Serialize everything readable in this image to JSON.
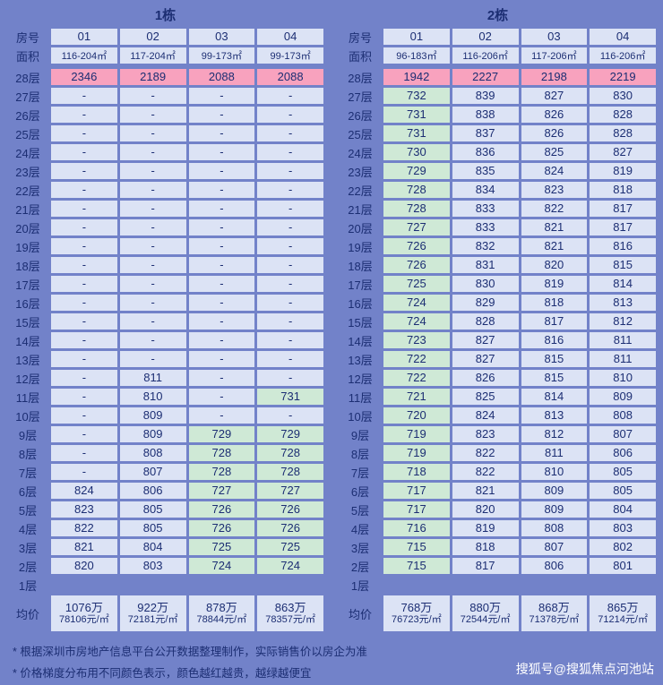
{
  "palette": {
    "background": "#7282c9",
    "cell": "#dce3f5",
    "green": "#cfe9d6",
    "pink": "#f8a2be",
    "text": "#1c2e73",
    "watermark": "#ffffff"
  },
  "chart_data": [
    {
      "type": "table",
      "title": "1栋",
      "row_header": "房号",
      "area_header": "面积",
      "avg_header": "均价",
      "columns": [
        "01",
        "02",
        "03",
        "04"
      ],
      "areas": [
        "116-204㎡",
        "117-204㎡",
        "99-173㎡",
        "99-173㎡"
      ],
      "floors": [
        {
          "label": "28层",
          "values": [
            "2346",
            "2189",
            "2088",
            "2088"
          ]
        },
        {
          "label": "27层",
          "values": [
            "-",
            "-",
            "-",
            "-"
          ]
        },
        {
          "label": "26层",
          "values": [
            "-",
            "-",
            "-",
            "-"
          ]
        },
        {
          "label": "25层",
          "values": [
            "-",
            "-",
            "-",
            "-"
          ]
        },
        {
          "label": "24层",
          "values": [
            "-",
            "-",
            "-",
            "-"
          ]
        },
        {
          "label": "23层",
          "values": [
            "-",
            "-",
            "-",
            "-"
          ]
        },
        {
          "label": "22层",
          "values": [
            "-",
            "-",
            "-",
            "-"
          ]
        },
        {
          "label": "21层",
          "values": [
            "-",
            "-",
            "-",
            "-"
          ]
        },
        {
          "label": "20层",
          "values": [
            "-",
            "-",
            "-",
            "-"
          ]
        },
        {
          "label": "19层",
          "values": [
            "-",
            "-",
            "-",
            "-"
          ]
        },
        {
          "label": "18层",
          "values": [
            "-",
            "-",
            "-",
            "-"
          ]
        },
        {
          "label": "17层",
          "values": [
            "-",
            "-",
            "-",
            "-"
          ]
        },
        {
          "label": "16层",
          "values": [
            "-",
            "-",
            "-",
            "-"
          ]
        },
        {
          "label": "15层",
          "values": [
            "-",
            "-",
            "-",
            "-"
          ]
        },
        {
          "label": "14层",
          "values": [
            "-",
            "-",
            "-",
            "-"
          ]
        },
        {
          "label": "13层",
          "values": [
            "-",
            "-",
            "-",
            "-"
          ]
        },
        {
          "label": "12层",
          "values": [
            "-",
            "811",
            "-",
            "-"
          ]
        },
        {
          "label": "11层",
          "values": [
            "-",
            "810",
            "-",
            "731"
          ]
        },
        {
          "label": "10层",
          "values": [
            "-",
            "809",
            "-",
            "-"
          ]
        },
        {
          "label": "9层",
          "values": [
            "-",
            "809",
            "729",
            "729"
          ]
        },
        {
          "label": "8层",
          "values": [
            "-",
            "808",
            "728",
            "728"
          ]
        },
        {
          "label": "7层",
          "values": [
            "-",
            "807",
            "728",
            "728"
          ]
        },
        {
          "label": "6层",
          "values": [
            "824",
            "806",
            "727",
            "727"
          ]
        },
        {
          "label": "5层",
          "values": [
            "823",
            "805",
            "726",
            "726"
          ]
        },
        {
          "label": "4层",
          "values": [
            "822",
            "805",
            "726",
            "726"
          ]
        },
        {
          "label": "3层",
          "values": [
            "821",
            "804",
            "725",
            "725"
          ]
        },
        {
          "label": "2层",
          "values": [
            "820",
            "803",
            "724",
            "724"
          ]
        },
        {
          "label": "1层",
          "values": [
            "",
            "",
            "",
            ""
          ]
        }
      ],
      "averages": [
        {
          "total": "1076万",
          "unit": "78106元/㎡"
        },
        {
          "total": "922万",
          "unit": "72181元/㎡"
        },
        {
          "total": "878万",
          "unit": "78844元/㎡"
        },
        {
          "total": "863万",
          "unit": "78357元/㎡"
        }
      ]
    },
    {
      "type": "table",
      "title": "2栋",
      "row_header": "房号",
      "area_header": "面积",
      "avg_header": "均价",
      "columns": [
        "01",
        "02",
        "03",
        "04"
      ],
      "areas": [
        "96-183㎡",
        "116-206㎡",
        "117-206㎡",
        "116-206㎡"
      ],
      "floors": [
        {
          "label": "28层",
          "values": [
            "1942",
            "2227",
            "2198",
            "2219"
          ]
        },
        {
          "label": "27层",
          "values": [
            "732",
            "839",
            "827",
            "830"
          ]
        },
        {
          "label": "26层",
          "values": [
            "731",
            "838",
            "826",
            "828"
          ]
        },
        {
          "label": "25层",
          "values": [
            "731",
            "837",
            "826",
            "828"
          ]
        },
        {
          "label": "24层",
          "values": [
            "730",
            "836",
            "825",
            "827"
          ]
        },
        {
          "label": "23层",
          "values": [
            "729",
            "835",
            "824",
            "819"
          ]
        },
        {
          "label": "22层",
          "values": [
            "728",
            "834",
            "823",
            "818"
          ]
        },
        {
          "label": "21层",
          "values": [
            "728",
            "833",
            "822",
            "817"
          ]
        },
        {
          "label": "20层",
          "values": [
            "727",
            "833",
            "821",
            "817"
          ]
        },
        {
          "label": "19层",
          "values": [
            "726",
            "832",
            "821",
            "816"
          ]
        },
        {
          "label": "18层",
          "values": [
            "726",
            "831",
            "820",
            "815"
          ]
        },
        {
          "label": "17层",
          "values": [
            "725",
            "830",
            "819",
            "814"
          ]
        },
        {
          "label": "16层",
          "values": [
            "724",
            "829",
            "818",
            "813"
          ]
        },
        {
          "label": "15层",
          "values": [
            "724",
            "828",
            "817",
            "812"
          ]
        },
        {
          "label": "14层",
          "values": [
            "723",
            "827",
            "816",
            "811"
          ]
        },
        {
          "label": "13层",
          "values": [
            "722",
            "827",
            "815",
            "811"
          ]
        },
        {
          "label": "12层",
          "values": [
            "722",
            "826",
            "815",
            "810"
          ]
        },
        {
          "label": "11层",
          "values": [
            "721",
            "825",
            "814",
            "809"
          ]
        },
        {
          "label": "10层",
          "values": [
            "720",
            "824",
            "813",
            "808"
          ]
        },
        {
          "label": "9层",
          "values": [
            "719",
            "823",
            "812",
            "807"
          ]
        },
        {
          "label": "8层",
          "values": [
            "719",
            "822",
            "811",
            "806"
          ]
        },
        {
          "label": "7层",
          "values": [
            "718",
            "822",
            "810",
            "805"
          ]
        },
        {
          "label": "6层",
          "values": [
            "717",
            "821",
            "809",
            "805"
          ]
        },
        {
          "label": "5层",
          "values": [
            "717",
            "820",
            "809",
            "804"
          ]
        },
        {
          "label": "4层",
          "values": [
            "716",
            "819",
            "808",
            "803"
          ]
        },
        {
          "label": "3层",
          "values": [
            "715",
            "818",
            "807",
            "802"
          ]
        },
        {
          "label": "2层",
          "values": [
            "715",
            "817",
            "806",
            "801"
          ]
        },
        {
          "label": "1层",
          "values": [
            "",
            "",
            "",
            ""
          ]
        }
      ],
      "averages": [
        {
          "total": "768万",
          "unit": "76723元/㎡"
        },
        {
          "total": "880万",
          "unit": "72544元/㎡"
        },
        {
          "total": "868万",
          "unit": "71378元/㎡"
        },
        {
          "total": "865万",
          "unit": "71214元/㎡"
        }
      ]
    }
  ],
  "notes": [
    "* 根据深圳市房地产信息平台公开数据整理制作，实际销售价以房企为准",
    "* 价格梯度分布用不同颜色表示，颜色越红越贵，越绿越便宜"
  ],
  "watermark": "搜狐号@搜狐焦点河池站"
}
